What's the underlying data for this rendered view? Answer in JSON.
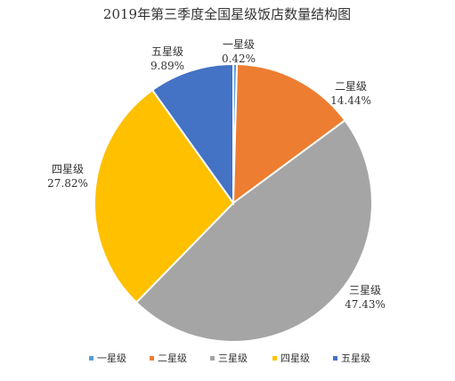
{
  "chart_data": {
    "type": "pie",
    "title": "2019年第三季度全国星级饭店数量结构图",
    "categories": [
      "一星级",
      "二星级",
      "三星级",
      "四星级",
      "五星级"
    ],
    "values": [
      0.42,
      14.44,
      47.43,
      27.82,
      9.89
    ],
    "value_labels": [
      "0.42%",
      "14.44%",
      "47.43%",
      "27.82%",
      "9.89%"
    ],
    "colors": [
      "#5B9BD5",
      "#ED7D31",
      "#A5A5A5",
      "#FFC000",
      "#4472C4"
    ],
    "legend_position": "bottom",
    "start_angle": "12 o'clock",
    "direction": "clockwise"
  }
}
